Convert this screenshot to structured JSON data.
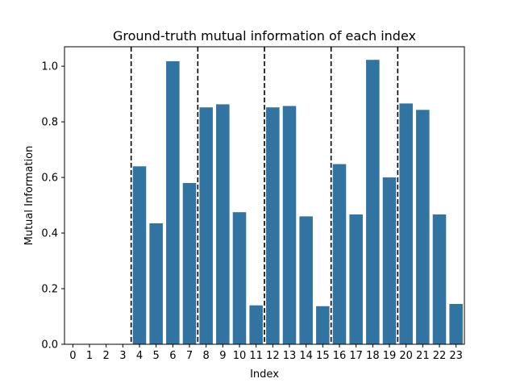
{
  "chart_data": {
    "type": "bar",
    "title": "Ground-truth mutual information of each index",
    "xlabel": "Index",
    "ylabel": "Mutual Information",
    "categories": [
      "0",
      "1",
      "2",
      "3",
      "4",
      "5",
      "6",
      "7",
      "8",
      "9",
      "10",
      "11",
      "12",
      "13",
      "14",
      "15",
      "16",
      "17",
      "18",
      "19",
      "20",
      "21",
      "22",
      "23"
    ],
    "values": [
      0,
      0,
      0,
      0,
      0.64,
      0.435,
      1.018,
      0.58,
      0.852,
      0.863,
      0.475,
      0.14,
      0.852,
      0.857,
      0.46,
      0.137,
      0.648,
      0.467,
      1.023,
      0.6,
      0.866,
      0.843,
      0.467,
      0.145
    ],
    "ylim": [
      0,
      1.07
    ],
    "yticks": [
      0.0,
      0.2,
      0.4,
      0.6,
      0.8,
      1.0
    ],
    "ytick_labels": [
      "0.0",
      "0.2",
      "0.4",
      "0.6",
      "0.8",
      "1.0"
    ],
    "separators_at": [
      3.5,
      7.5,
      11.5,
      15.5,
      19.5
    ],
    "bar_color": "#3274a1",
    "separator_color": "#000000",
    "separator_style": "dashed",
    "grid": false,
    "legend": "none"
  }
}
